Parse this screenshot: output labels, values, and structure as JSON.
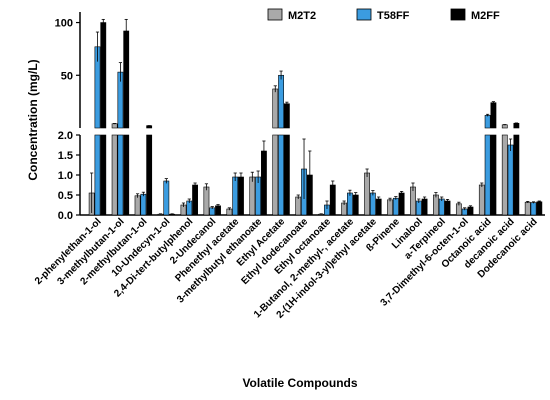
{
  "chart_data": {
    "type": "bar",
    "xlabel": "Volatile Compounds",
    "ylabel": "Concentration (mg/L)",
    "y_axis_break": true,
    "lower_ylim": [
      0,
      2.0
    ],
    "upper_ylim": [
      0,
      110
    ],
    "lower_ticks": [
      "0.0",
      "0.5",
      "1.0",
      "1.5",
      "2.0"
    ],
    "upper_ticks": [
      "50",
      "100"
    ],
    "legend_position": "top-right",
    "grid": false,
    "categories": [
      "2-phenylethan-1-ol",
      "3-methylbutan-1-ol",
      "2-methylbutan-1-ol",
      "10-Undecyn-1-ol",
      "2,4-Di-tert-butylphenol",
      "2-Undecanol",
      "Phenethyl acetate",
      "3-methylbutyl ethanoate",
      "Ethyl Acetate",
      "Ethyl dodecanoate",
      "Ethyl octanoate",
      "1-Butanol, 2-methyl-, acetate",
      "2-(1H-indol-3-yl)ethyl acetate",
      "ß-Pinene",
      "Linalool",
      "a-Terpineol",
      "3,7-Dimethyl-6-octen-1-ol",
      "Octanoic acid",
      "decanoic acid",
      "Dodecanoic acid"
    ],
    "series": [
      {
        "name": "M2T2",
        "color": "#a9a9a9",
        "values": [
          0.55,
          4.0,
          0.48,
          0.02,
          0.25,
          0.7,
          0.15,
          0.95,
          37,
          0.45,
          0.02,
          0.3,
          1.05,
          0.38,
          0.7,
          0.5,
          0.28,
          0.75,
          3.0,
          0.32
        ],
        "errors": [
          0.5,
          0.3,
          0.05,
          0.01,
          0.05,
          0.08,
          0.03,
          0.12,
          3,
          0.05,
          0.01,
          0.05,
          0.1,
          0.04,
          0.1,
          0.06,
          0.04,
          0.05,
          0.3,
          0.02
        ]
      },
      {
        "name": "T58FF",
        "color": "#3b9ce0",
        "values": [
          77,
          53,
          0.52,
          0.85,
          0.35,
          0.18,
          0.95,
          0.95,
          50,
          1.15,
          0.25,
          0.55,
          0.55,
          0.42,
          0.35,
          0.4,
          0.15,
          12,
          1.75,
          0.31
        ],
        "errors": [
          14,
          9,
          0.05,
          0.06,
          0.05,
          0.03,
          0.1,
          0.15,
          4,
          0.75,
          0.1,
          0.07,
          0.06,
          0.04,
          0.05,
          0.05,
          0.03,
          1,
          0.15,
          0.02
        ]
      },
      {
        "name": "M2FF",
        "color": "#000000",
        "values": [
          100,
          92,
          2.2,
          0.02,
          0.75,
          0.23,
          0.95,
          1.6,
          23,
          1.0,
          0.75,
          0.5,
          0.4,
          0.55,
          0.4,
          0.35,
          0.2,
          24,
          4.5,
          0.33
        ],
        "errors": [
          3,
          11,
          0.1,
          0.01,
          0.05,
          0.03,
          0.1,
          0.25,
          1.5,
          0.6,
          0.1,
          0.06,
          0.05,
          0.04,
          0.05,
          0.04,
          0.03,
          1,
          0.3,
          0.02
        ]
      }
    ]
  }
}
